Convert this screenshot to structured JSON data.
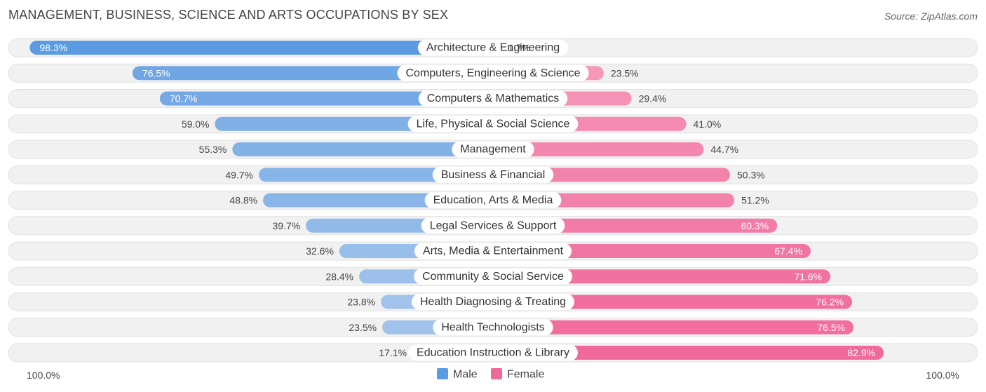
{
  "title": "MANAGEMENT, BUSINESS, SCIENCE AND ARTS OCCUPATIONS BY SEX",
  "source": "Source: ZipAtlas.com",
  "colors": {
    "male_strong": "#5b9be1",
    "male_light": "#a7c6ec",
    "female_strong": "#f0699b",
    "female_light": "#f7a9c5",
    "track": "#f1f1f1"
  },
  "chart_data": {
    "type": "bar",
    "orientation": "diverging-horizontal",
    "categories": [
      "Architecture & Engineering",
      "Computers, Engineering & Science",
      "Computers & Mathematics",
      "Life, Physical & Social Science",
      "Management",
      "Business & Financial",
      "Education, Arts & Media",
      "Legal Services & Support",
      "Arts, Media & Entertainment",
      "Community & Social Service",
      "Health Diagnosing & Treating",
      "Health Technologists",
      "Education Instruction & Library"
    ],
    "series": [
      {
        "name": "Male",
        "values": [
          98.3,
          76.5,
          70.7,
          59.0,
          55.3,
          49.7,
          48.8,
          39.7,
          32.6,
          28.4,
          23.8,
          23.5,
          17.1
        ],
        "labels": [
          "98.3%",
          "76.5%",
          "70.7%",
          "59.0%",
          "55.3%",
          "49.7%",
          "48.8%",
          "39.7%",
          "32.6%",
          "28.4%",
          "23.8%",
          "23.5%",
          "17.1%"
        ]
      },
      {
        "name": "Female",
        "values": [
          1.7,
          23.5,
          29.4,
          41.0,
          44.7,
          50.3,
          51.2,
          60.3,
          67.4,
          71.6,
          76.2,
          76.5,
          82.9
        ],
        "labels": [
          "1.7%",
          "23.5%",
          "29.4%",
          "41.0%",
          "44.7%",
          "50.3%",
          "51.2%",
          "60.3%",
          "67.4%",
          "71.6%",
          "76.2%",
          "76.5%",
          "82.9%"
        ]
      }
    ],
    "xlim": [
      0,
      100
    ],
    "axis_left_label": "100.0%",
    "axis_right_label": "100.0%",
    "legend_position": "bottom-center"
  }
}
